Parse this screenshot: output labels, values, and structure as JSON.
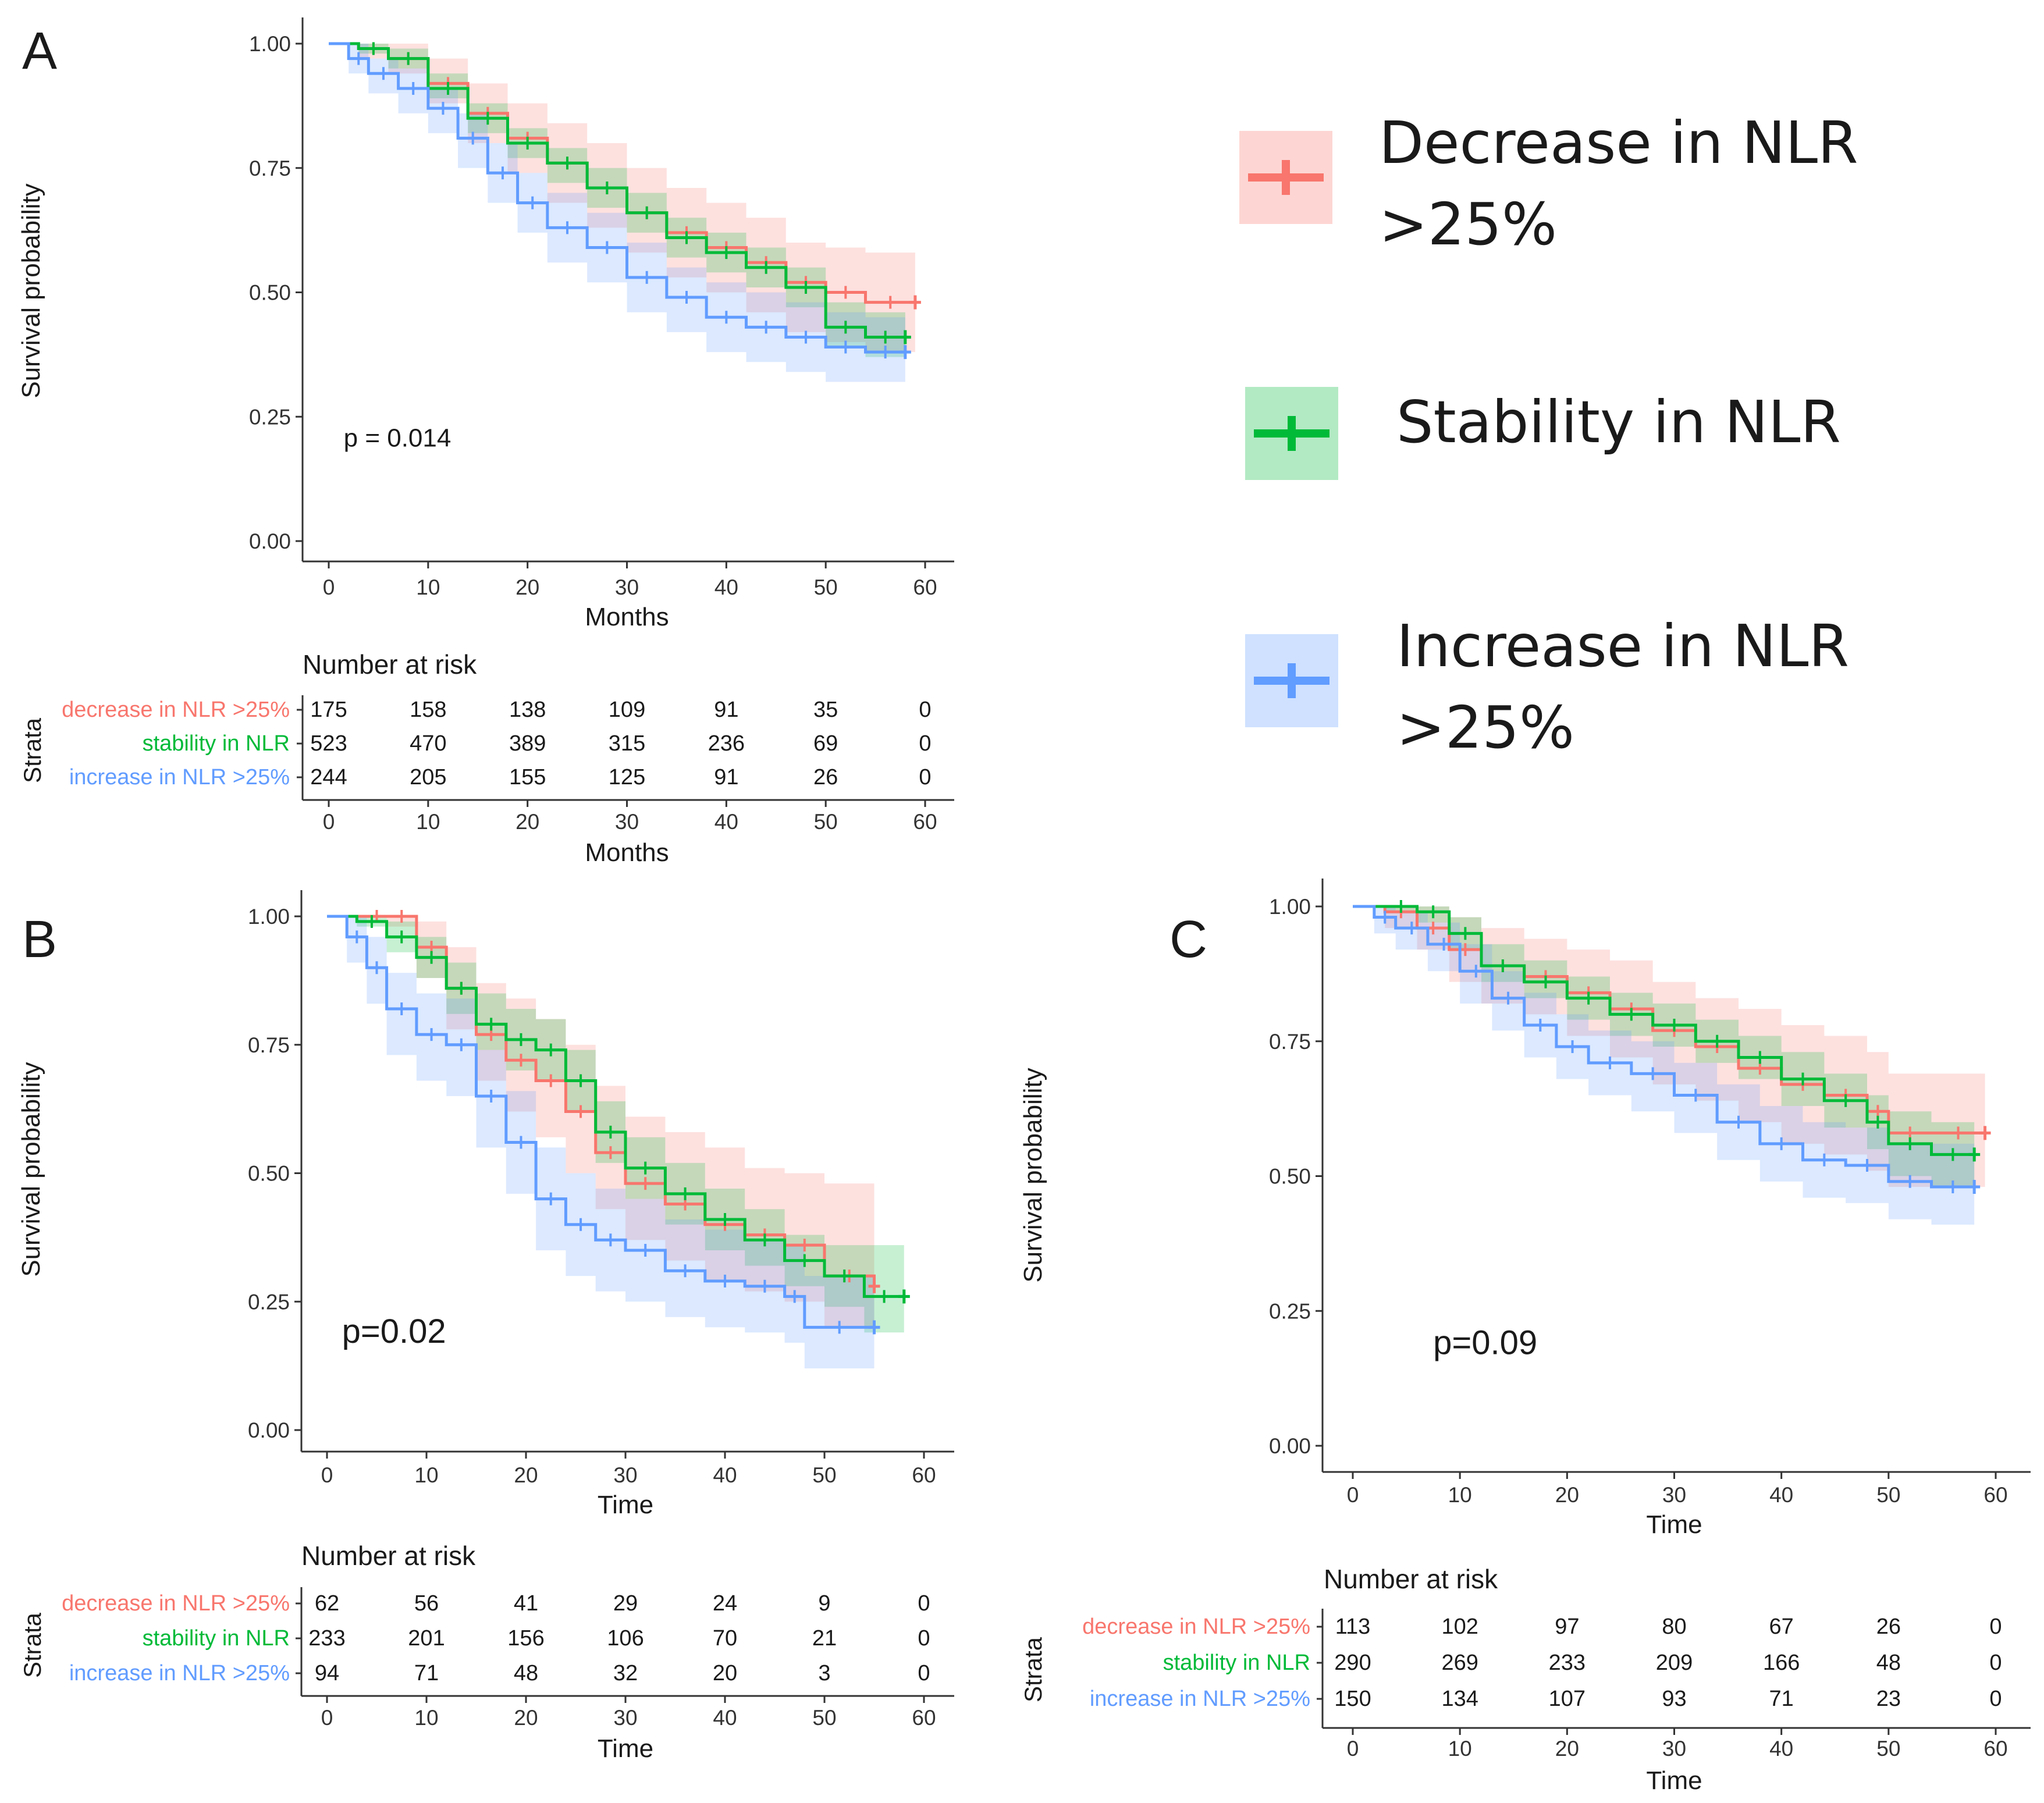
{
  "colors": {
    "decrease": "#F8766D",
    "stability": "#00BA38",
    "increase": "#619CFF",
    "decrease_fill": "#F8766D",
    "stability_fill": "#00BA38",
    "increase_fill": "#619CFF",
    "axis": "#333333",
    "text": "#1a1a1a"
  },
  "legend": {
    "items": [
      {
        "key": "decrease",
        "line1": "Decrease in NLR",
        "line2": ">25%"
      },
      {
        "key": "stability",
        "line1": "Stability in NLR",
        "line2": ""
      },
      {
        "key": "increase",
        "line1": "Increase in NLR",
        "line2": ">25%"
      }
    ]
  },
  "chart_data": [
    {
      "type": "line",
      "panel_label": "A",
      "ylabel": "Survival probability",
      "xlabel": "Months",
      "yticks": [
        "0.00",
        "0.25",
        "0.50",
        "0.75",
        "1.00"
      ],
      "xticks": [
        "0",
        "10",
        "20",
        "30",
        "40",
        "50",
        "60"
      ],
      "xlim": [
        0,
        60
      ],
      "ylim": [
        0,
        1
      ],
      "pvalue": "p = 0.014",
      "series": [
        {
          "key": "decrease",
          "name": "decrease in NLR >25%",
          "x": [
            0,
            3,
            6,
            10,
            14,
            18,
            22,
            26,
            30,
            34,
            38,
            42,
            46,
            50,
            54,
            59
          ],
          "y": [
            1.0,
            0.99,
            0.97,
            0.92,
            0.86,
            0.81,
            0.76,
            0.71,
            0.66,
            0.62,
            0.59,
            0.56,
            0.52,
            0.5,
            0.48,
            0.48
          ],
          "lo": [
            1.0,
            0.97,
            0.94,
            0.88,
            0.8,
            0.74,
            0.68,
            0.63,
            0.58,
            0.53,
            0.5,
            0.46,
            0.42,
            0.4,
            0.38,
            0.38
          ],
          "hi": [
            1.0,
            1.0,
            1.0,
            0.97,
            0.92,
            0.88,
            0.84,
            0.8,
            0.75,
            0.71,
            0.68,
            0.65,
            0.6,
            0.59,
            0.58,
            0.58
          ]
        },
        {
          "key": "stability",
          "name": "stability in NLR",
          "x": [
            0,
            3,
            6,
            10,
            14,
            18,
            22,
            26,
            30,
            34,
            38,
            42,
            46,
            50,
            54,
            58
          ],
          "y": [
            1.0,
            0.99,
            0.97,
            0.91,
            0.85,
            0.8,
            0.76,
            0.71,
            0.66,
            0.61,
            0.58,
            0.55,
            0.51,
            0.43,
            0.41,
            0.41
          ],
          "lo": [
            1.0,
            0.98,
            0.95,
            0.89,
            0.82,
            0.77,
            0.72,
            0.67,
            0.62,
            0.57,
            0.54,
            0.51,
            0.47,
            0.39,
            0.37,
            0.37
          ],
          "hi": [
            1.0,
            1.0,
            0.99,
            0.94,
            0.88,
            0.83,
            0.79,
            0.75,
            0.7,
            0.65,
            0.62,
            0.59,
            0.55,
            0.48,
            0.46,
            0.46
          ]
        },
        {
          "key": "increase",
          "name": "increase in NLR >25%",
          "x": [
            0,
            2,
            4,
            7,
            10,
            13,
            16,
            19,
            22,
            26,
            30,
            34,
            38,
            42,
            46,
            50,
            54,
            58
          ],
          "y": [
            1.0,
            0.97,
            0.94,
            0.91,
            0.87,
            0.81,
            0.74,
            0.68,
            0.63,
            0.59,
            0.53,
            0.49,
            0.45,
            0.43,
            0.41,
            0.39,
            0.38,
            0.38
          ],
          "lo": [
            1.0,
            0.94,
            0.9,
            0.86,
            0.82,
            0.75,
            0.68,
            0.62,
            0.56,
            0.52,
            0.46,
            0.42,
            0.38,
            0.36,
            0.34,
            0.32,
            0.32,
            0.32
          ],
          "hi": [
            1.0,
            1.0,
            0.97,
            0.95,
            0.91,
            0.86,
            0.8,
            0.74,
            0.7,
            0.66,
            0.6,
            0.55,
            0.52,
            0.5,
            0.48,
            0.46,
            0.45,
            0.45
          ]
        }
      ],
      "risk_table": {
        "title": "Number at risk",
        "strata_label": "Strata",
        "xlabel": "Months",
        "rows": [
          {
            "key": "decrease",
            "label": "decrease in NLR >25%",
            "values": [
              "175",
              "158",
              "138",
              "109",
              "91",
              "35",
              "0"
            ]
          },
          {
            "key": "stability",
            "label": "stability in NLR",
            "values": [
              "523",
              "470",
              "389",
              "315",
              "236",
              "69",
              "0"
            ]
          },
          {
            "key": "increase",
            "label": "increase in NLR >25%",
            "values": [
              "244",
              "205",
              "155",
              "125",
              "91",
              "26",
              "0"
            ]
          }
        ]
      }
    },
    {
      "type": "line",
      "panel_label": "B",
      "ylabel": "Survival probability",
      "xlabel": "Time",
      "yticks": [
        "0.00",
        "0.25",
        "0.50",
        "0.75",
        "1.00"
      ],
      "xticks": [
        "0",
        "10",
        "20",
        "30",
        "40",
        "50",
        "60"
      ],
      "xlim": [
        0,
        60
      ],
      "ylim": [
        0,
        1
      ],
      "pvalue": "p=0.02",
      "series": [
        {
          "key": "decrease",
          "name": "decrease in NLR >25%",
          "x": [
            0,
            4,
            6,
            9,
            12,
            15,
            18,
            21,
            24,
            27,
            30,
            34,
            38,
            42,
            46,
            50,
            55
          ],
          "y": [
            1.0,
            1.0,
            1.0,
            0.94,
            0.86,
            0.77,
            0.72,
            0.68,
            0.62,
            0.54,
            0.48,
            0.44,
            0.4,
            0.38,
            0.36,
            0.3,
            0.28
          ],
          "lo": [
            1.0,
            1.0,
            0.98,
            0.88,
            0.78,
            0.68,
            0.62,
            0.57,
            0.5,
            0.43,
            0.37,
            0.33,
            0.29,
            0.27,
            0.25,
            0.2,
            0.18
          ],
          "hi": [
            1.0,
            1.0,
            1.0,
            0.99,
            0.94,
            0.87,
            0.84,
            0.8,
            0.75,
            0.67,
            0.61,
            0.58,
            0.55,
            0.51,
            0.5,
            0.48,
            0.48
          ]
        },
        {
          "key": "stability",
          "name": "stability in NLR",
          "x": [
            0,
            3,
            6,
            9,
            12,
            15,
            18,
            21,
            24,
            27,
            30,
            34,
            38,
            42,
            46,
            50,
            54,
            58
          ],
          "y": [
            1.0,
            0.99,
            0.96,
            0.92,
            0.86,
            0.79,
            0.76,
            0.74,
            0.68,
            0.58,
            0.51,
            0.46,
            0.41,
            0.37,
            0.33,
            0.3,
            0.26,
            0.26
          ],
          "lo": [
            1.0,
            0.98,
            0.93,
            0.88,
            0.81,
            0.74,
            0.7,
            0.68,
            0.62,
            0.52,
            0.45,
            0.4,
            0.35,
            0.32,
            0.28,
            0.24,
            0.19,
            0.19
          ],
          "hi": [
            1.0,
            1.0,
            0.99,
            0.96,
            0.91,
            0.85,
            0.82,
            0.8,
            0.74,
            0.64,
            0.57,
            0.52,
            0.47,
            0.43,
            0.38,
            0.36,
            0.36,
            0.36
          ]
        },
        {
          "key": "increase",
          "name": "increase in NLR >25%",
          "x": [
            0,
            2,
            4,
            6,
            9,
            12,
            15,
            18,
            21,
            24,
            27,
            30,
            34,
            38,
            42,
            46,
            48,
            55
          ],
          "y": [
            1.0,
            0.96,
            0.9,
            0.82,
            0.77,
            0.75,
            0.65,
            0.56,
            0.45,
            0.4,
            0.37,
            0.35,
            0.31,
            0.29,
            0.28,
            0.26,
            0.2,
            0.2
          ],
          "lo": [
            1.0,
            0.91,
            0.83,
            0.73,
            0.68,
            0.65,
            0.55,
            0.46,
            0.35,
            0.3,
            0.27,
            0.25,
            0.22,
            0.2,
            0.19,
            0.17,
            0.12,
            0.12
          ],
          "hi": [
            1.0,
            1.0,
            0.96,
            0.89,
            0.85,
            0.84,
            0.74,
            0.66,
            0.55,
            0.5,
            0.47,
            0.45,
            0.41,
            0.39,
            0.37,
            0.36,
            0.3,
            0.3
          ]
        }
      ],
      "risk_table": {
        "title": "Number at risk",
        "strata_label": "Strata",
        "xlabel": "Time",
        "rows": [
          {
            "key": "decrease",
            "label": "decrease in NLR >25%",
            "values": [
              "62",
              "56",
              "41",
              "29",
              "24",
              "9",
              "0"
            ]
          },
          {
            "key": "stability",
            "label": "stability in NLR",
            "values": [
              "233",
              "201",
              "156",
              "106",
              "70",
              "21",
              "0"
            ]
          },
          {
            "key": "increase",
            "label": "increase in NLR >25%",
            "values": [
              "94",
              "71",
              "48",
              "32",
              "20",
              "3",
              "0"
            ]
          }
        ]
      }
    },
    {
      "type": "line",
      "panel_label": "C",
      "ylabel": "Survival probability",
      "xlabel": "Time",
      "yticks": [
        "0.00",
        "0.25",
        "0.50",
        "0.75",
        "1.00"
      ],
      "xticks": [
        "0",
        "10",
        "20",
        "30",
        "40",
        "50",
        "60"
      ],
      "xlim": [
        0,
        60
      ],
      "ylim": [
        0,
        1
      ],
      "pvalue": "p=0.09",
      "series": [
        {
          "key": "decrease",
          "name": "decrease in NLR >25%",
          "x": [
            0,
            3,
            6,
            9,
            12,
            16,
            20,
            24,
            28,
            32,
            36,
            40,
            44,
            48,
            50,
            54,
            59
          ],
          "y": [
            1.0,
            0.99,
            0.96,
            0.92,
            0.89,
            0.87,
            0.84,
            0.81,
            0.77,
            0.74,
            0.7,
            0.67,
            0.65,
            0.62,
            0.58,
            0.58,
            0.58
          ],
          "lo": [
            1.0,
            0.96,
            0.92,
            0.86,
            0.82,
            0.8,
            0.76,
            0.72,
            0.67,
            0.64,
            0.6,
            0.56,
            0.54,
            0.51,
            0.48,
            0.48,
            0.48
          ],
          "hi": [
            1.0,
            1.0,
            1.0,
            0.98,
            0.96,
            0.94,
            0.92,
            0.9,
            0.86,
            0.83,
            0.81,
            0.78,
            0.76,
            0.73,
            0.69,
            0.69,
            0.69
          ]
        },
        {
          "key": "stability",
          "name": "stability in NLR",
          "x": [
            0,
            3,
            6,
            9,
            12,
            16,
            20,
            24,
            28,
            32,
            36,
            40,
            44,
            48,
            50,
            54,
            58
          ],
          "y": [
            1.0,
            1.0,
            0.99,
            0.95,
            0.89,
            0.86,
            0.83,
            0.8,
            0.78,
            0.75,
            0.72,
            0.68,
            0.64,
            0.6,
            0.56,
            0.54,
            0.54
          ],
          "lo": [
            1.0,
            0.99,
            0.97,
            0.92,
            0.86,
            0.83,
            0.79,
            0.76,
            0.74,
            0.71,
            0.68,
            0.63,
            0.59,
            0.55,
            0.5,
            0.48,
            0.48
          ],
          "hi": [
            1.0,
            1.0,
            1.0,
            0.98,
            0.93,
            0.9,
            0.87,
            0.84,
            0.82,
            0.79,
            0.76,
            0.73,
            0.69,
            0.65,
            0.62,
            0.6,
            0.6
          ]
        },
        {
          "key": "increase",
          "name": "increase in NLR >25%",
          "x": [
            0,
            2,
            4,
            7,
            10,
            13,
            16,
            19,
            22,
            26,
            30,
            34,
            38,
            42,
            46,
            50,
            54,
            58
          ],
          "y": [
            1.0,
            0.98,
            0.96,
            0.93,
            0.88,
            0.83,
            0.78,
            0.74,
            0.71,
            0.69,
            0.65,
            0.6,
            0.56,
            0.53,
            0.52,
            0.49,
            0.48,
            0.48
          ],
          "lo": [
            1.0,
            0.95,
            0.92,
            0.88,
            0.82,
            0.77,
            0.72,
            0.68,
            0.65,
            0.62,
            0.58,
            0.53,
            0.49,
            0.46,
            0.45,
            0.42,
            0.41,
            0.41
          ],
          "hi": [
            1.0,
            1.0,
            0.99,
            0.97,
            0.93,
            0.88,
            0.84,
            0.8,
            0.77,
            0.75,
            0.71,
            0.67,
            0.63,
            0.6,
            0.59,
            0.56,
            0.56,
            0.56
          ]
        }
      ],
      "risk_table": {
        "title": "Number at risk",
        "strata_label": "Strata",
        "xlabel": "Time",
        "rows": [
          {
            "key": "decrease",
            "label": "decrease in NLR >25%",
            "values": [
              "113",
              "102",
              "97",
              "80",
              "67",
              "26",
              "0"
            ]
          },
          {
            "key": "stability",
            "label": "stability in NLR",
            "values": [
              "290",
              "269",
              "233",
              "209",
              "166",
              "48",
              "0"
            ]
          },
          {
            "key": "increase",
            "label": "increase in NLR >25%",
            "values": [
              "150",
              "134",
              "107",
              "93",
              "71",
              "23",
              "0"
            ]
          }
        ]
      }
    }
  ]
}
